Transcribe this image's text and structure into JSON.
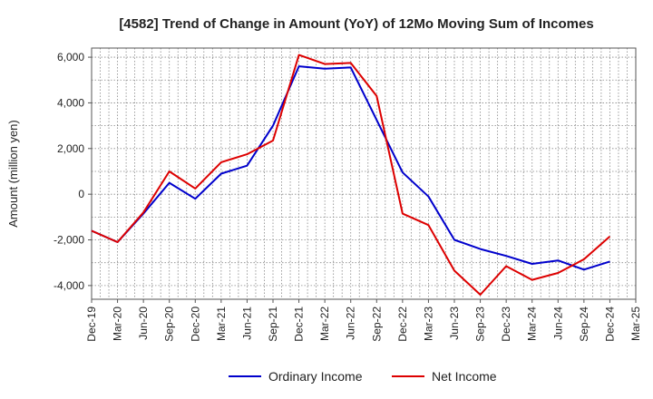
{
  "chart_data": {
    "type": "line",
    "title": "[4582]  Trend of Change in Amount (YoY) of 12Mo Moving Sum of Incomes",
    "xlabel": "",
    "ylabel": "Amount (million yen)",
    "ylim": [
      -4600,
      6400
    ],
    "yticks": [
      -4000,
      -2000,
      0,
      2000,
      4000,
      6000
    ],
    "ytick_labels": [
      "-4,000",
      "-2,000",
      "0",
      "2,000",
      "4,000",
      "6,000"
    ],
    "grid": true,
    "legend_position": "bottom-center",
    "categories": [
      "Dec-19",
      "Mar-20",
      "Jun-20",
      "Sep-20",
      "Dec-20",
      "Mar-21",
      "Jun-21",
      "Sep-21",
      "Dec-21",
      "Mar-22",
      "Jun-22",
      "Sep-22",
      "Dec-22",
      "Mar-23",
      "Jun-23",
      "Sep-23",
      "Dec-23",
      "Mar-24",
      "Jun-24",
      "Sep-24",
      "Dec-24",
      "Mar-25"
    ],
    "series": [
      {
        "name": "Ordinary Income",
        "color": "#0000cc",
        "values": [
          -1600,
          -2100,
          -850,
          500,
          -200,
          900,
          1250,
          3000,
          5600,
          5500,
          5550,
          3250,
          950,
          -100,
          -2000,
          -2400,
          -2700,
          -3050,
          -2900,
          -3300,
          -2950,
          null
        ]
      },
      {
        "name": "Net Income",
        "color": "#dd0000",
        "values": [
          -1600,
          -2100,
          -800,
          1000,
          250,
          1400,
          1750,
          2350,
          6100,
          5700,
          5750,
          4300,
          -850,
          -1350,
          -3350,
          -4400,
          -3150,
          -3750,
          -3450,
          -2850,
          -1850,
          null
        ]
      }
    ]
  }
}
